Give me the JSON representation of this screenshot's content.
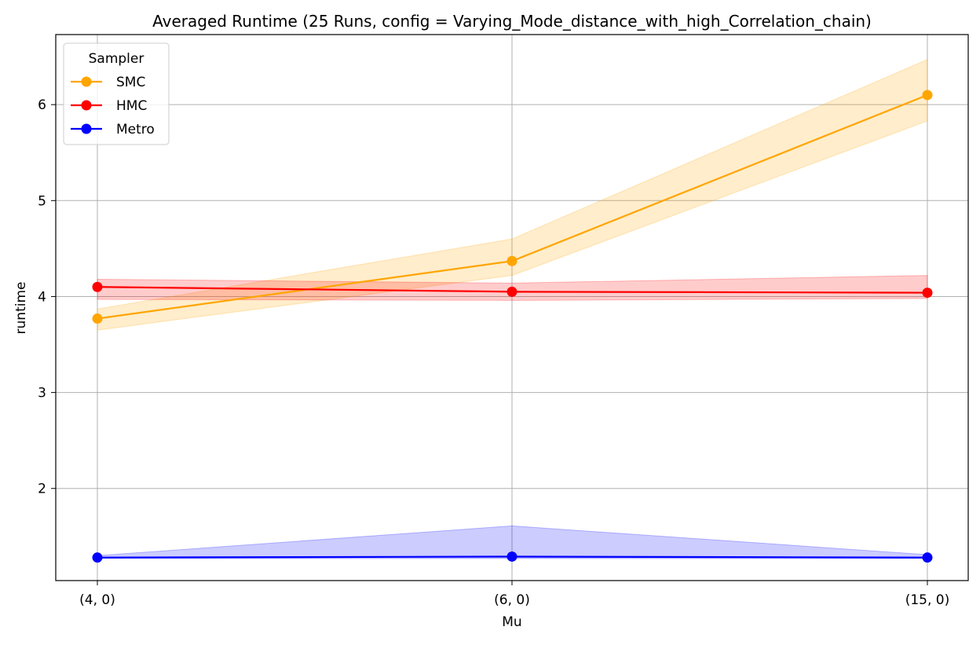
{
  "chart_data": {
    "type": "line",
    "title": "Averaged Runtime (25 Runs, config = Varying_Mode_distance_with_high_Correlation_chain)",
    "xlabel": "Mu",
    "ylabel": "runtime",
    "categories": [
      "(4, 0)",
      "(6, 0)",
      "(15, 0)"
    ],
    "yticks": [
      2,
      3,
      4,
      5,
      6
    ],
    "ylim": [
      1.04,
      6.73
    ],
    "grid": true,
    "legend": {
      "title": "Sampler",
      "position": "top-left"
    },
    "series": [
      {
        "name": "SMC",
        "color": "#ffa500",
        "values": [
          3.77,
          4.37,
          6.1
        ],
        "lower": [
          3.65,
          4.22,
          5.83
        ],
        "upper": [
          3.87,
          4.6,
          6.47
        ]
      },
      {
        "name": "HMC",
        "color": "#ff0000",
        "values": [
          4.1,
          4.05,
          4.04
        ],
        "lower": [
          3.97,
          3.96,
          3.98
        ],
        "upper": [
          4.18,
          4.14,
          4.22
        ]
      },
      {
        "name": "Metro",
        "color": "#0000ff",
        "values": [
          1.28,
          1.29,
          1.28
        ],
        "lower": [
          1.27,
          1.27,
          1.27
        ],
        "upper": [
          1.3,
          1.61,
          1.31
        ]
      }
    ]
  }
}
